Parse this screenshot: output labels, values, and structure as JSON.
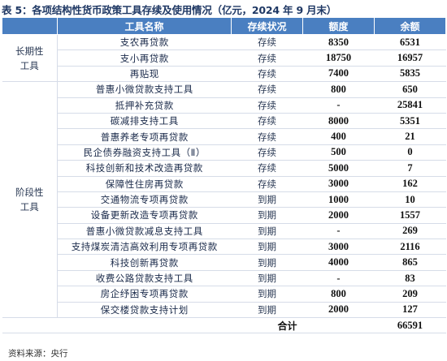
{
  "title": "表 5：各项结构性货币政策工具存续及使用情况（亿元，2024 年 9 月末）",
  "headers": [
    "工具名称",
    "存续状况",
    "额度",
    "余额"
  ],
  "groups": [
    {
      "label": "长期性\n工具",
      "rows": [
        {
          "name": "支农再贷款",
          "status": "存续",
          "amount": "8350",
          "balance": "6531"
        },
        {
          "name": "支小再贷款",
          "status": "存续",
          "amount": "18750",
          "balance": "16957"
        },
        {
          "name": "再贴现",
          "status": "存续",
          "amount": "7400",
          "balance": "5835"
        }
      ]
    },
    {
      "label": "阶段性\n工具",
      "rows": [
        {
          "name": "普惠小微贷款支持工具",
          "status": "存续",
          "amount": "800",
          "balance": "650"
        },
        {
          "name": "抵押补充贷款",
          "status": "存续",
          "amount": "-",
          "balance": "25841"
        },
        {
          "name": "碳减排支持工具",
          "status": "存续",
          "amount": "8000",
          "balance": "5351"
        },
        {
          "name": "普惠养老专项再贷款",
          "status": "存续",
          "amount": "400",
          "balance": "21"
        },
        {
          "name": "民企债券融资支持工具（Ⅱ）",
          "status": "存续",
          "amount": "500",
          "balance": "0"
        },
        {
          "name": "科技创新和技术改造再贷款",
          "status": "存续",
          "amount": "5000",
          "balance": "7"
        },
        {
          "name": "保障性住房再贷款",
          "status": "存续",
          "amount": "3000",
          "balance": "162"
        },
        {
          "name": "交通物流专项再贷款",
          "status": "到期",
          "amount": "1000",
          "balance": "10"
        },
        {
          "name": "设备更新改造专项再贷款",
          "status": "到期",
          "amount": "2000",
          "balance": "1557"
        },
        {
          "name": "普惠小微贷款减息支持工具",
          "status": "到期",
          "amount": "-",
          "balance": "269"
        },
        {
          "name": "支持煤炭清洁高效利用专项再贷款",
          "status": "到期",
          "amount": "3000",
          "balance": "2116"
        },
        {
          "name": "科技创新再贷款",
          "status": "到期",
          "amount": "4000",
          "balance": "865"
        },
        {
          "name": "收费公路贷款支持工具",
          "status": "到期",
          "amount": "-",
          "balance": "83"
        },
        {
          "name": "房企纾困专项再贷款",
          "status": "到期",
          "amount": "800",
          "balance": "209"
        },
        {
          "name": "保交楼贷款支持计划",
          "status": "到期",
          "amount": "2000",
          "balance": "127"
        }
      ]
    }
  ],
  "total": {
    "label": "合计",
    "balance": "66591"
  },
  "source": "资料来源：央行"
}
